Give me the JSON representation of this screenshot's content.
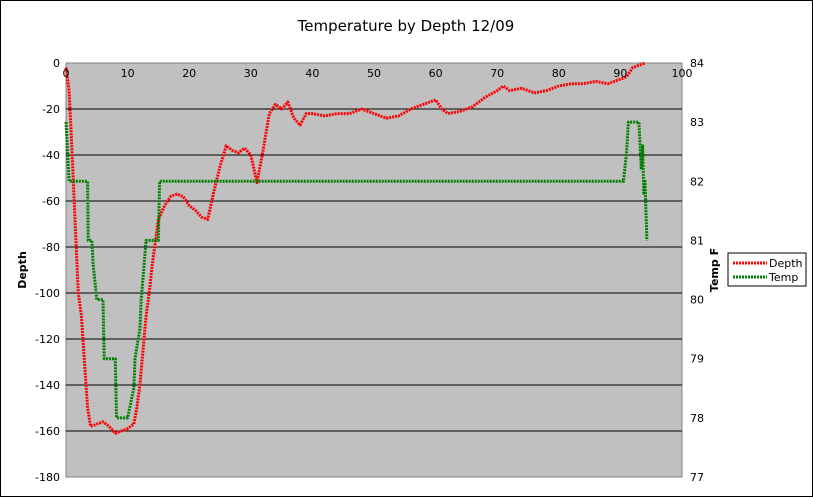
{
  "chart_data": {
    "type": "line",
    "title": "Temperature by Depth 12/09",
    "xlabel": "",
    "ylabel": "Depth",
    "y2label": "Temp F",
    "xlim": [
      0,
      100
    ],
    "ylim": [
      -180,
      0
    ],
    "y2lim": [
      77,
      84
    ],
    "x_ticks": [
      0,
      10,
      20,
      30,
      40,
      50,
      60,
      70,
      80,
      90,
      100
    ],
    "y_ticks": [
      0,
      -20,
      -40,
      -60,
      -80,
      -100,
      -120,
      -140,
      -160,
      -180
    ],
    "y2_ticks": [
      84,
      83,
      82,
      81,
      80,
      79,
      78,
      77
    ],
    "grid": "horizontal",
    "legend_position": "right",
    "background": "#c0c0c0",
    "series": [
      {
        "name": "Depth",
        "color": "#ff0000",
        "axis": "left",
        "x": [
          0,
          0.5,
          1,
          1.5,
          2,
          2.5,
          3,
          3.5,
          4,
          5,
          6,
          7,
          8,
          9,
          10,
          11,
          11.5,
          12,
          12.5,
          13,
          13.5,
          14,
          14.5,
          15,
          16,
          17,
          18,
          19,
          20,
          21,
          22,
          23,
          24,
          25,
          26,
          27,
          28,
          29,
          30,
          31,
          32,
          33,
          34,
          35,
          36,
          37,
          38,
          39,
          40,
          42,
          44,
          46,
          48,
          50,
          52,
          54,
          56,
          58,
          60,
          61,
          62,
          64,
          66,
          68,
          70,
          71,
          72,
          74,
          76,
          78,
          80,
          82,
          84,
          86,
          88,
          90,
          91,
          92,
          93,
          94
        ],
        "y": [
          -2,
          -12,
          -40,
          -70,
          -100,
          -110,
          -130,
          -150,
          -158,
          -157,
          -156,
          -158,
          -161,
          -160,
          -159,
          -157,
          -150,
          -140,
          -125,
          -110,
          -100,
          -88,
          -78,
          -68,
          -62,
          -58,
          -57,
          -58,
          -62,
          -64,
          -67,
          -68,
          -56,
          -45,
          -36,
          -38,
          -39,
          -37,
          -40,
          -52,
          -38,
          -22,
          -18,
          -20,
          -17,
          -24,
          -27,
          -22,
          -22,
          -23,
          -22,
          -22,
          -20,
          -22,
          -24,
          -23,
          -20,
          -18,
          -16,
          -20,
          -22,
          -21,
          -19,
          -15,
          -12,
          -10,
          -12,
          -11,
          -13,
          -12,
          -10,
          -9,
          -9,
          -8,
          -9,
          -7,
          -6,
          -2,
          -1,
          0
        ]
      },
      {
        "name": "Temp",
        "color": "#008000",
        "axis": "right",
        "x": [
          0,
          0.5,
          0.7,
          3.5,
          3.6,
          4.2,
          4.4,
          5,
          6,
          6.2,
          8,
          8.2,
          10,
          11,
          11.2,
          12,
          12.2,
          13,
          15,
          15.2,
          90.5,
          91,
          91.3,
          93,
          93.4,
          93.6,
          93.8,
          94,
          94.3
        ],
        "y": [
          83,
          82,
          82,
          82,
          81,
          81,
          80.6,
          80,
          80,
          79,
          79,
          78,
          78,
          78.5,
          79,
          79.5,
          80,
          81,
          81,
          82,
          82,
          82.5,
          83,
          83,
          82.2,
          82.6,
          81.8,
          82,
          81
        ]
      }
    ]
  }
}
